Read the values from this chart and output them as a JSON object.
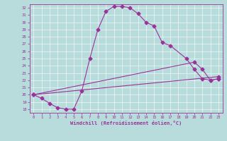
{
  "xlabel": "Windchill (Refroidissement éolien,°C)",
  "background_color": "#b8dcdc",
  "line_color": "#993399",
  "xlim": [
    -0.5,
    23.5
  ],
  "ylim": [
    17.5,
    32.5
  ],
  "xticks": [
    0,
    1,
    2,
    3,
    4,
    5,
    6,
    7,
    8,
    9,
    10,
    11,
    12,
    13,
    14,
    15,
    16,
    17,
    18,
    19,
    20,
    21,
    22,
    23
  ],
  "yticks": [
    18,
    19,
    20,
    21,
    22,
    23,
    24,
    25,
    26,
    27,
    28,
    29,
    30,
    31,
    32
  ],
  "curve1_x": [
    0,
    1,
    2,
    3,
    4,
    5,
    6,
    7,
    8,
    9,
    10,
    11,
    12,
    13,
    14,
    15,
    16,
    17,
    19,
    20,
    21,
    22,
    23
  ],
  "curve1_y": [
    20,
    19.5,
    18.8,
    18.2,
    18.0,
    18.0,
    20.5,
    25.0,
    29.0,
    31.5,
    32.2,
    32.2,
    32.0,
    31.2,
    30.0,
    29.5,
    27.2,
    26.8,
    25.0,
    23.5,
    22.2,
    22.0,
    22.2
  ],
  "curve2_x": [
    0,
    23
  ],
  "curve2_y": [
    20.0,
    22.5
  ],
  "curve3_x": [
    0,
    20,
    21,
    22,
    23
  ],
  "curve3_y": [
    20.0,
    24.5,
    23.5,
    22.0,
    22.2
  ]
}
